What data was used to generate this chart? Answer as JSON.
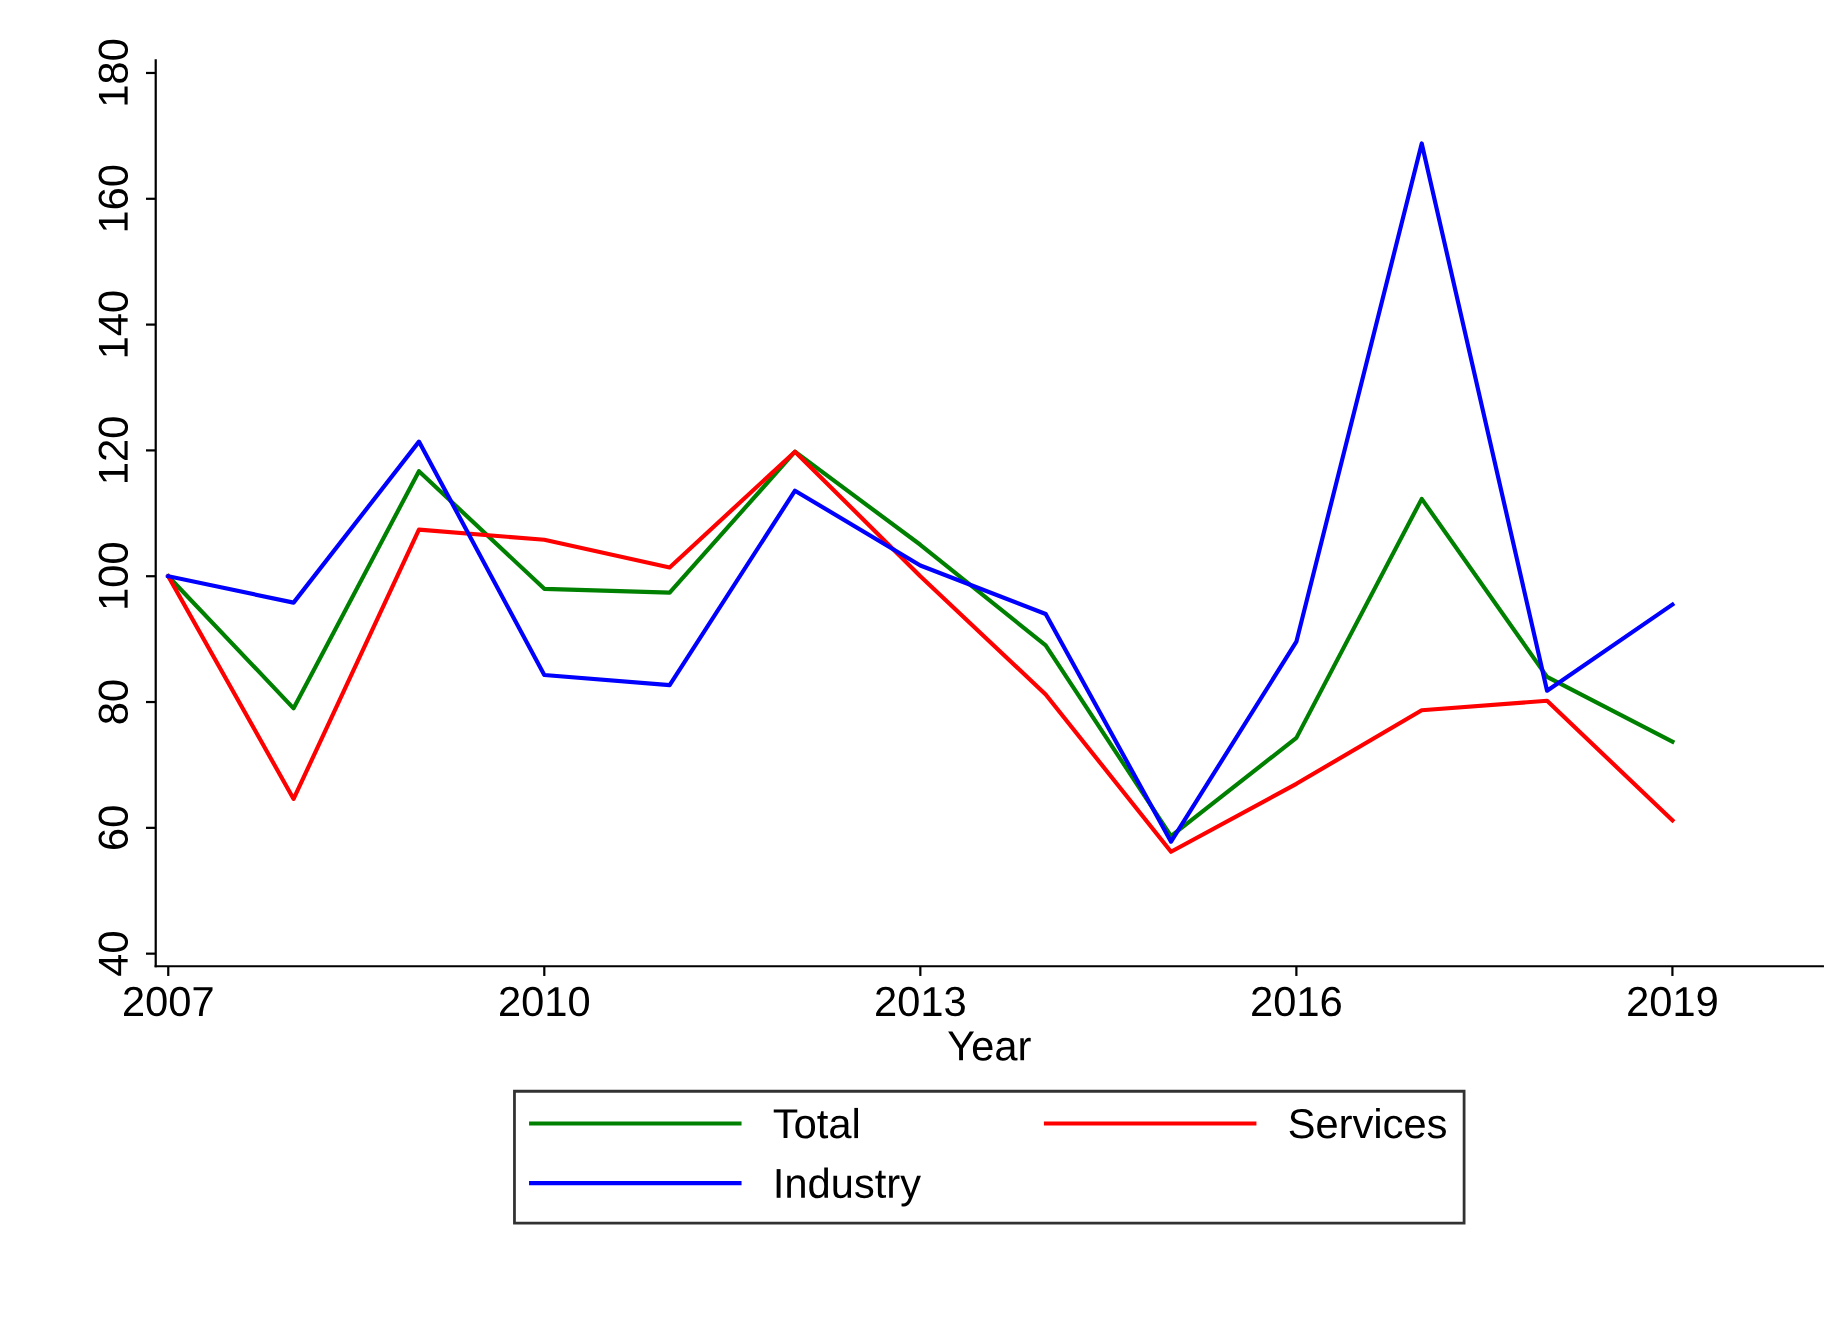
{
  "chart_data": {
    "type": "line",
    "xlabel": "Year",
    "x": [
      2007,
      2008,
      2009,
      2010,
      2011,
      2012,
      2013,
      2014,
      2015,
      2016,
      2017,
      2018,
      2019
    ],
    "series": [
      {
        "name": "Total",
        "color": "#008000",
        "values": [
          100,
          79,
          116.7,
          98,
          97.4,
          119.8,
          105,
          89,
          58.7,
          74.3,
          112.3,
          84,
          73.7
        ]
      },
      {
        "name": "Services",
        "color": "#ff0000",
        "values": [
          100,
          64.6,
          107.4,
          105.8,
          101.4,
          119.8,
          100,
          81.2,
          56.2,
          67,
          78.7,
          80.2,
          61.2
        ]
      },
      {
        "name": "Industry",
        "color": "#0000ff",
        "values": [
          100,
          95.8,
          121.4,
          84.3,
          82.7,
          113.6,
          101.7,
          94,
          57.8,
          89.6,
          168.8,
          81.8,
          95.5
        ]
      }
    ],
    "xlim": [
      2006.9,
      2020.2
    ],
    "ylim": [
      38,
      182
    ],
    "xticks": [
      2007,
      2010,
      2013,
      2016,
      2019
    ],
    "yticks": [
      40,
      60,
      80,
      100,
      120,
      140,
      160,
      180
    ],
    "grid": false,
    "legend": "bottom",
    "marker": "none",
    "line_style": "solid"
  }
}
